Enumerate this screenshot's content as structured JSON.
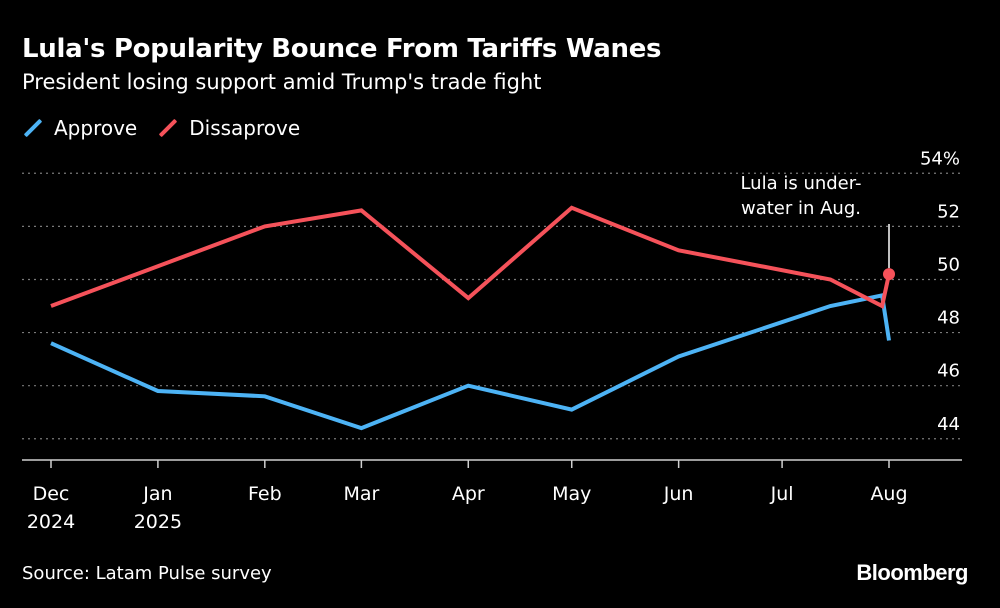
{
  "header": {
    "title": "Lula's Popularity Bounce From Tariffs Wanes",
    "subtitle": "President losing support amid Trump's trade fight"
  },
  "legend": {
    "approve_label": "Approve",
    "disapprove_label": "Dissaprove"
  },
  "footer": {
    "source": "Source: Latam Pulse survey",
    "brand": "Bloomberg"
  },
  "colors": {
    "approve": "#4db3f5",
    "disapprove": "#f5525a",
    "grid": "#7a7a7a",
    "axis": "#cfcfcf"
  },
  "chart_data": {
    "type": "line",
    "title": "Lula's Popularity Bounce From Tariffs Wanes",
    "subtitle": "President losing support amid Trump's trade fight",
    "x_tick_labels": [
      [
        "Dec",
        "2024"
      ],
      [
        "Jan",
        "2025"
      ],
      [
        "Feb",
        ""
      ],
      [
        "Mar",
        ""
      ],
      [
        "Apr",
        ""
      ],
      [
        "May",
        ""
      ],
      [
        "Jun",
        ""
      ],
      [
        "Jul",
        ""
      ],
      [
        "Aug",
        ""
      ]
    ],
    "x_tick_dates": [
      "2024-12-01",
      "2025-01-01",
      "2025-02-01",
      "2025-03-01",
      "2025-04-01",
      "2025-05-01",
      "2025-06-01",
      "2025-07-01",
      "2025-08-01"
    ],
    "y_ticks": [
      44,
      46,
      48,
      50,
      52,
      54
    ],
    "y_tick_labels": [
      "44",
      "46",
      "48",
      "50",
      "52",
      "54%"
    ],
    "ylim": [
      43.2,
      54.5
    ],
    "grid": true,
    "legend_position": "top-left",
    "series": [
      {
        "name": "Approve",
        "color": "#4db3f5",
        "points": [
          {
            "x": "2024-12-01",
            "y": 47.6
          },
          {
            "x": "2025-01-01",
            "y": 45.8
          },
          {
            "x": "2025-02-01",
            "y": 45.6
          },
          {
            "x": "2025-03-01",
            "y": 44.4
          },
          {
            "x": "2025-04-01",
            "y": 46.0
          },
          {
            "x": "2025-05-01",
            "y": 45.1
          },
          {
            "x": "2025-06-01",
            "y": 47.1
          },
          {
            "x": "2025-07-15",
            "y": 49.0
          },
          {
            "x": "2025-07-30",
            "y": 49.4
          },
          {
            "x": "2025-08-01",
            "y": 47.7
          }
        ]
      },
      {
        "name": "Dissaprove",
        "color": "#f5525a",
        "points": [
          {
            "x": "2024-12-01",
            "y": 49.0
          },
          {
            "x": "2025-02-01",
            "y": 52.0
          },
          {
            "x": "2025-03-01",
            "y": 52.6
          },
          {
            "x": "2025-04-01",
            "y": 49.3
          },
          {
            "x": "2025-05-01",
            "y": 52.7
          },
          {
            "x": "2025-06-01",
            "y": 51.1
          },
          {
            "x": "2025-07-15",
            "y": 50.0
          },
          {
            "x": "2025-07-30",
            "y": 49.0
          },
          {
            "x": "2025-08-01",
            "y": 50.2
          }
        ]
      }
    ],
    "annotations": [
      {
        "text_lines": [
          "Lula is under-",
          "water in Aug."
        ],
        "x": "2025-08-01",
        "y": 50.2
      }
    ]
  }
}
